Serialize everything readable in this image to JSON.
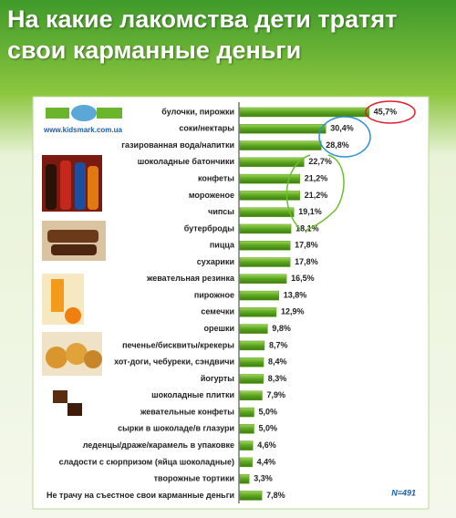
{
  "chart_data": {
    "type": "bar",
    "orientation": "horizontal",
    "title": "На какие лакомства дети тратят свои карманные деньги",
    "website": "www.kidsmark.com.ua",
    "note": "N=491",
    "color": "#5aa51e",
    "categories": [
      "булочки, пирожки",
      "соки/нектары",
      "газированная вода/напитки",
      "шоколадные батончики",
      "конфеты",
      "мороженое",
      "чипсы",
      "бутерброды",
      "пицца",
      "сухарики",
      "жевательная резинка",
      "пирожное",
      "семечки",
      "орешки",
      "печенье/бисквиты/крекеры",
      "хот-доги, чебуреки, сэндвичи",
      "йогурты",
      "шоколадные плитки",
      "жевательные конфеты",
      "сырки в шоколаде/в глазури",
      "леденцы/драже/карамель в упаковке",
      "сладости с сюрпризом (яйца шоколадные)",
      "творожные тортики",
      "Не трачу на съестное  свои карманные деньги"
    ],
    "values": [
      45.7,
      30.4,
      28.8,
      22.7,
      21.2,
      21.2,
      19.1,
      18.1,
      17.8,
      17.8,
      16.5,
      13.8,
      12.9,
      9.8,
      8.7,
      8.4,
      8.3,
      7.9,
      5.0,
      5.0,
      4.6,
      4.4,
      3.3,
      7.8
    ],
    "value_labels": [
      "45,7%",
      "30,4%",
      "28,8%",
      "22,7%",
      "21,2%",
      "21,2%",
      "19,1%",
      "18,1%",
      "17,8%",
      "17,8%",
      "16,5%",
      "13,8%",
      "12,9%",
      "9,8%",
      "8,7%",
      "8,4%",
      "8,3%",
      "7,9%",
      "5,0%",
      "5,0%",
      "4,6%",
      "4,4%",
      "3,3%",
      "7,8%"
    ]
  }
}
